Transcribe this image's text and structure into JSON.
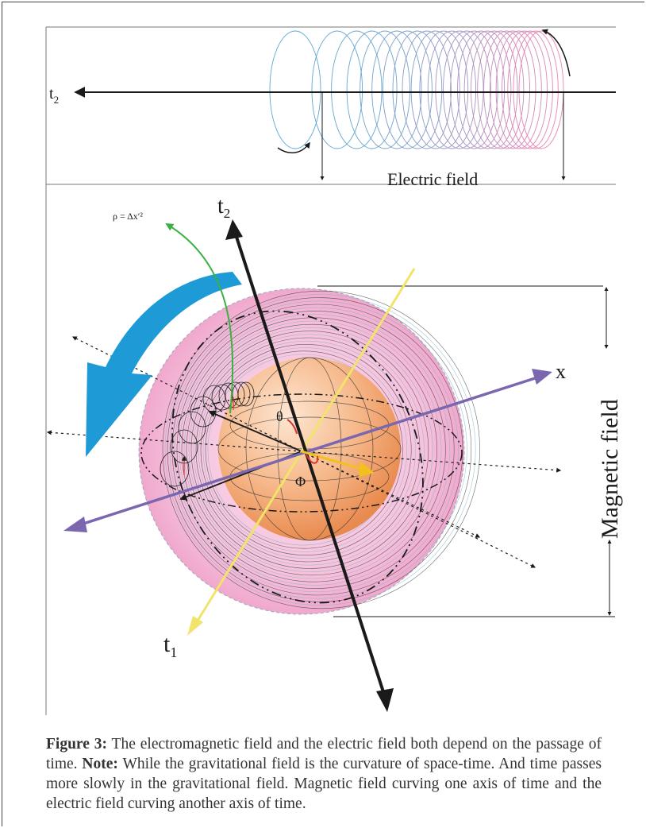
{
  "figure": {
    "top_panel": {
      "axis_label": "t",
      "axis_label_sub": "2",
      "field_label": "Electric field"
    },
    "bottom_panel": {
      "t2_label": "t",
      "t2_sub": "2",
      "t1_label": "t",
      "t1_sub": "1",
      "x_label": "x",
      "theta_label": "θ",
      "phi_label": "Φ",
      "rho_label": "ρ = Δx′²",
      "magnetic_label": "Magnetic field"
    }
  },
  "caption": {
    "figure_label": "Figure 3:",
    "text_1": " The electromagnetic field and the electric field both depend on the passage of time. ",
    "note_label": "Note:",
    "text_2": " While the gravitational field is the curvature of space-time. And time passes more slowly in the gravitational field. Magnetic field curving one axis of time and the electric field curving another axis of time."
  },
  "colors": {
    "axis_black": "#1a1a1a",
    "axis_yellow": "#f2e36b",
    "axis_purple": "#7a67b0",
    "arrow_blue": "#1e9ad6",
    "sphere_orange": "#f2a26a",
    "halo_pink": "#f0a8cc",
    "green_curve": "#3cb043"
  }
}
